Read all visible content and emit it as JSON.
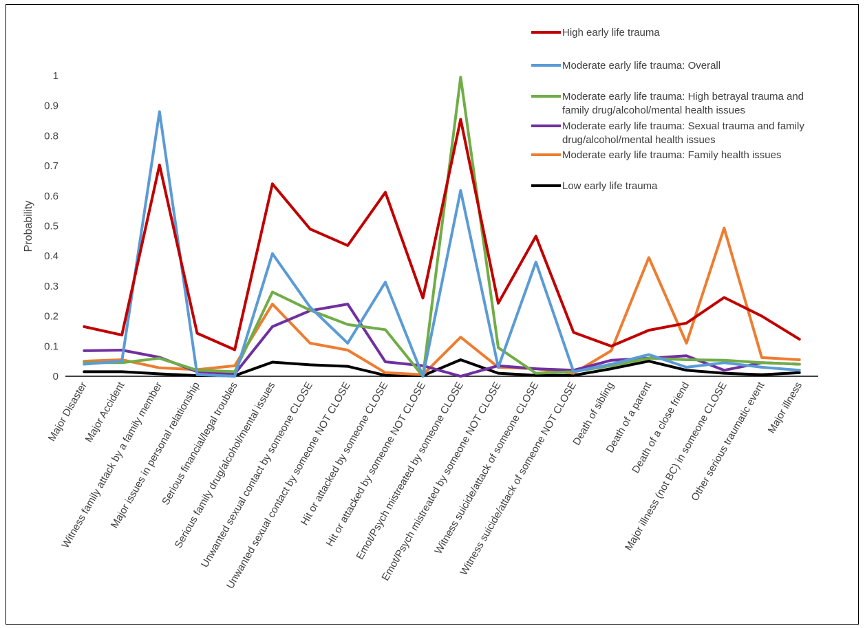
{
  "chart_data": {
    "type": "line",
    "title": "",
    "xlabel": "",
    "ylabel": "Probability",
    "ylim": [
      0,
      1
    ],
    "yticks": [
      "0",
      "0.1",
      "0.2",
      "0.3",
      "0.4",
      "0.5",
      "0.6",
      "0.7",
      "0.8",
      "0.9",
      "1"
    ],
    "grid": false,
    "legend_position": "top-right",
    "categories": [
      "Major Disaster",
      "Major Accident",
      "Witness family attack by a family member",
      "Major issues in personal relationship",
      "Serious financial/legal troubles",
      "Serious family drug/alcohol/mental issues",
      "Unwanted sexual contact by someone CLOSE",
      "Unwanted sexual contact by someone NOT CLOSE",
      "Hit or attacked by someone CLOSE",
      "Hit or attacked by someone NOT CLOSE",
      "Emot/Psych mistreated by someone CLOSE",
      "Emot/Psych mistreated by someone NOT CLOSE",
      "Witness suicide/attack of someone CLOSE",
      "Witness suicide/attack of someone NOT CLOSE",
      "Death of sibling",
      "Death of a parent",
      "Death of a close friend",
      "Major illness (not BC) in someone CLOSE",
      "Other serious traumatic event",
      "Major illness"
    ],
    "series": [
      {
        "name": "Low early life trauma",
        "color": "#000000",
        "values": [
          0.015,
          0.015,
          0.008,
          0.002,
          0.002,
          0.047,
          0.038,
          0.033,
          0.003,
          0.002,
          0.055,
          0.01,
          0.003,
          0.003,
          0.025,
          0.05,
          0.02,
          0.01,
          0.005,
          0.012
        ]
      },
      {
        "name": "Moderate early life trauma: Family health issues",
        "color": "#ED7D31",
        "values": [
          0.05,
          0.055,
          0.028,
          0.022,
          0.035,
          0.24,
          0.11,
          0.087,
          0.012,
          0.005,
          0.13,
          0.03,
          0.025,
          0.01,
          0.085,
          0.395,
          0.11,
          0.493,
          0.062,
          0.055
        ]
      },
      {
        "name": "Moderate early life trauma: Sexual trauma and family drug/alcohol/mental health issues",
        "color": "#7030A0",
        "values": [
          0.085,
          0.087,
          0.063,
          0.015,
          0.008,
          0.165,
          0.218,
          0.24,
          0.048,
          0.035,
          0.0,
          0.035,
          0.025,
          0.02,
          0.053,
          0.06,
          0.068,
          0.02,
          0.045,
          0.04
        ]
      },
      {
        "name": "Moderate early life trauma: High betrayal trauma and family drug/alcohol/mental health issues",
        "color": "#70AD47",
        "values": [
          0.045,
          0.045,
          0.06,
          0.02,
          0.015,
          0.28,
          0.22,
          0.172,
          0.155,
          0.0,
          0.995,
          0.095,
          0.01,
          0.015,
          0.035,
          0.06,
          0.055,
          0.053,
          0.045,
          0.04
        ]
      },
      {
        "name": "Moderate early life trauma: Overall",
        "color": "#5B9BD5",
        "values": [
          0.04,
          0.05,
          0.88,
          0.005,
          0.0,
          0.408,
          0.23,
          0.11,
          0.313,
          0.0,
          0.618,
          0.03,
          0.38,
          0.015,
          0.04,
          0.072,
          0.03,
          0.045,
          0.03,
          0.02
        ]
      },
      {
        "name": "High early life trauma",
        "color": "#C00000",
        "values": [
          0.165,
          0.137,
          0.703,
          0.143,
          0.088,
          0.64,
          0.49,
          0.435,
          0.612,
          0.26,
          0.855,
          0.243,
          0.466,
          0.146,
          0.1,
          0.153,
          0.177,
          0.262,
          0.2,
          0.123
        ]
      }
    ],
    "legend_order": [
      "High early life trauma",
      "Moderate early life trauma: Overall",
      "Moderate early life trauma: High betrayal trauma and family drug/alcohol/mental health issues",
      "Moderate early life trauma: Sexual trauma and family drug/alcohol/mental health issues",
      "Moderate early life trauma: Family health issues",
      "Low early life trauma"
    ],
    "legend_lines": [
      [
        "High early life trauma"
      ],
      [
        "Moderate early life trauma: Overall"
      ],
      [
        "Moderate early life trauma: High betrayal trauma and",
        "family drug/alcohol/mental health issues"
      ],
      [
        "Moderate early life trauma: Sexual trauma and family",
        "drug/alcohol/mental health issues"
      ],
      [
        "Moderate early life trauma: Family health issues"
      ],
      [
        "Low early life trauma"
      ]
    ]
  }
}
